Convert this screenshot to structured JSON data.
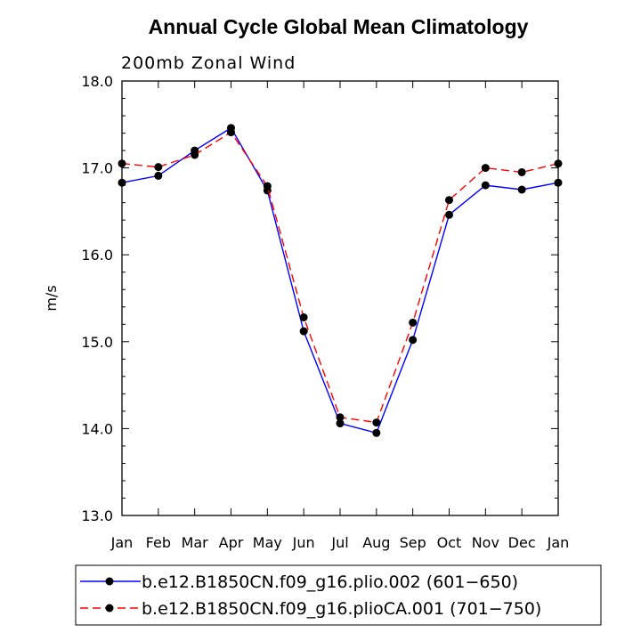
{
  "chart_data": {
    "type": "line",
    "title": "Annual Cycle Global Mean Climatology",
    "subtitle": "200mb Zonal Wind",
    "xlabel": "",
    "ylabel": "m/s",
    "categories": [
      "Jan",
      "Feb",
      "Mar",
      "Apr",
      "May",
      "Jun",
      "Jul",
      "Aug",
      "Sep",
      "Oct",
      "Nov",
      "Dec",
      "Jan"
    ],
    "ylim": [
      13.0,
      18.0
    ],
    "yticks": [
      "13.0",
      "14.0",
      "15.0",
      "16.0",
      "17.0",
      "18.0"
    ],
    "series": [
      {
        "name": "b.e12.B1850CN.f09_g16.plio.002 (601−650)",
        "color": "#0000ff",
        "dash": "solid",
        "values": [
          16.83,
          16.91,
          17.2,
          17.46,
          16.74,
          15.12,
          14.06,
          13.95,
          15.02,
          16.46,
          16.8,
          16.75,
          16.83
        ]
      },
      {
        "name": "b.e12.B1850CN.f09_g16.plioCA.001 (701−750)",
        "color": "#ff0000",
        "dash": "dashed",
        "values": [
          17.05,
          17.01,
          17.15,
          17.41,
          16.79,
          15.28,
          14.13,
          14.07,
          15.22,
          16.63,
          17.0,
          16.95,
          17.05
        ]
      }
    ]
  }
}
